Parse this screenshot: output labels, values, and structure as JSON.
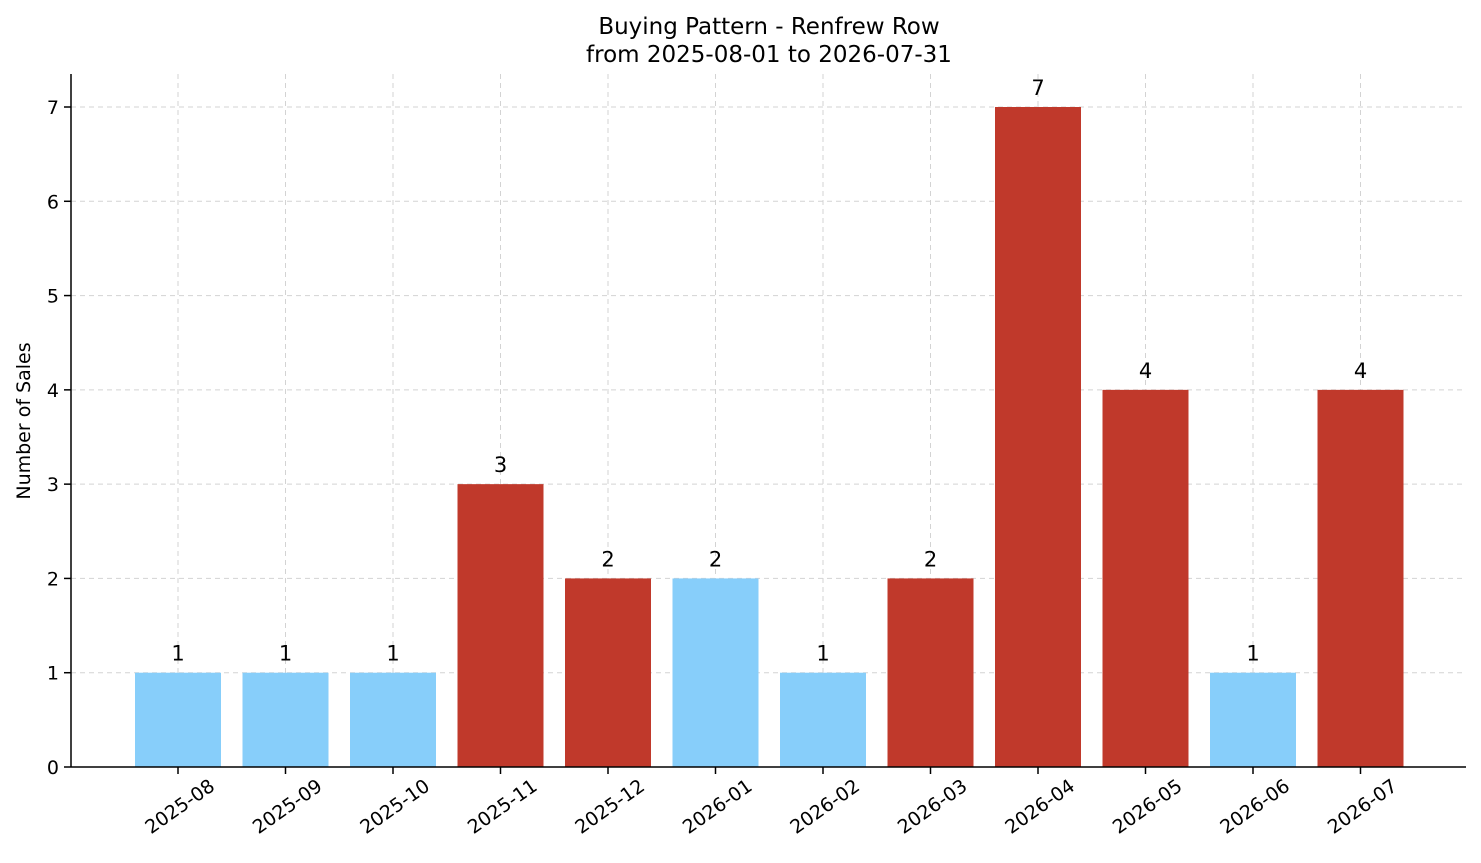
{
  "chart_data": {
    "type": "bar",
    "title": "Buying Pattern - Renfrew Row",
    "subtitle": "from 2025-08-01 to 2026-07-31",
    "xlabel": "",
    "ylabel": "Number of Sales",
    "categories": [
      "2025-08",
      "2025-09",
      "2025-10",
      "2025-11",
      "2025-12",
      "2026-01",
      "2026-02",
      "2026-03",
      "2026-04",
      "2026-05",
      "2026-06",
      "2026-07"
    ],
    "values": [
      1,
      1,
      1,
      3,
      2,
      2,
      1,
      2,
      7,
      4,
      1,
      4
    ],
    "data_labels": [
      "1",
      "1",
      "1",
      "3",
      "2",
      "2",
      "1",
      "2",
      "7",
      "4",
      "1",
      "4"
    ],
    "yticks": [
      0,
      1,
      2,
      3,
      4,
      5,
      6,
      7
    ],
    "ylim": [
      0,
      7.35
    ],
    "grid": true,
    "legend": "none",
    "colors": {
      "high": "#c0392b",
      "low": "#87cefa"
    },
    "bar_colors": [
      "low",
      "low",
      "low",
      "high",
      "high",
      "low",
      "low",
      "high",
      "high",
      "high",
      "low",
      "high"
    ]
  }
}
